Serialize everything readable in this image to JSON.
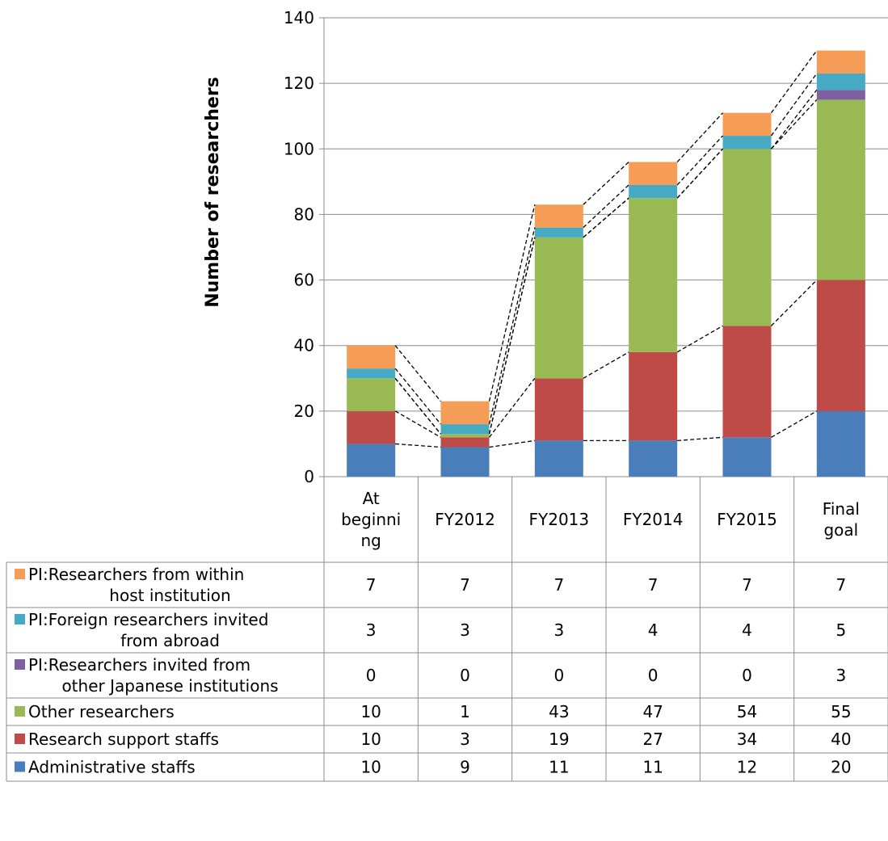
{
  "chart_data": {
    "type": "bar",
    "stacked": true,
    "categories": [
      "At beginning",
      "FY2012",
      "FY2013",
      "FY2014",
      "FY2015",
      "Final goal"
    ],
    "category_lines": [
      [
        "At",
        "beginni",
        "ng"
      ],
      [
        "FY2012"
      ],
      [
        "FY2013"
      ],
      [
        "FY2014"
      ],
      [
        "FY2015"
      ],
      [
        "Final",
        "goal"
      ]
    ],
    "series": [
      {
        "name": "Administrative staffs",
        "name_lines": [
          "Administrative staffs"
        ],
        "color": "#4A7EBB",
        "values": [
          10,
          9,
          11,
          11,
          12,
          20
        ]
      },
      {
        "name": "Research support staffs",
        "name_lines": [
          "Research support staffs"
        ],
        "color": "#BE4B48",
        "values": [
          10,
          3,
          19,
          27,
          34,
          40
        ]
      },
      {
        "name": "Other researchers",
        "name_lines": [
          "Other researchers"
        ],
        "color": "#98B954",
        "values": [
          10,
          1,
          43,
          47,
          54,
          55
        ]
      },
      {
        "name": "PI:Researchers invited from other Japanese institutions",
        "name_lines": [
          "PI:Researchers invited from",
          "other Japanese institutions"
        ],
        "color": "#7D60A0",
        "values": [
          0,
          0,
          0,
          0,
          0,
          3
        ]
      },
      {
        "name": "PI:Foreign researchers invited from abroad",
        "name_lines": [
          "PI:Foreign researchers invited",
          "from abroad"
        ],
        "color": "#46AAC5",
        "values": [
          3,
          3,
          3,
          4,
          4,
          5
        ]
      },
      {
        "name": "PI:Researchers from within host institution",
        "name_lines": [
          "PI:Researchers from within",
          "host institution"
        ],
        "color": "#F59D56",
        "values": [
          7,
          7,
          7,
          7,
          7,
          7
        ]
      }
    ],
    "table_order": [
      5,
      4,
      3,
      2,
      1,
      0
    ],
    "ylabel": "Number of researchers",
    "ylim": [
      0,
      140
    ],
    "yticks": [
      0,
      20,
      40,
      60,
      80,
      100,
      120,
      140
    ],
    "grid": true,
    "series_lines": "dashed",
    "legend": "data table"
  }
}
